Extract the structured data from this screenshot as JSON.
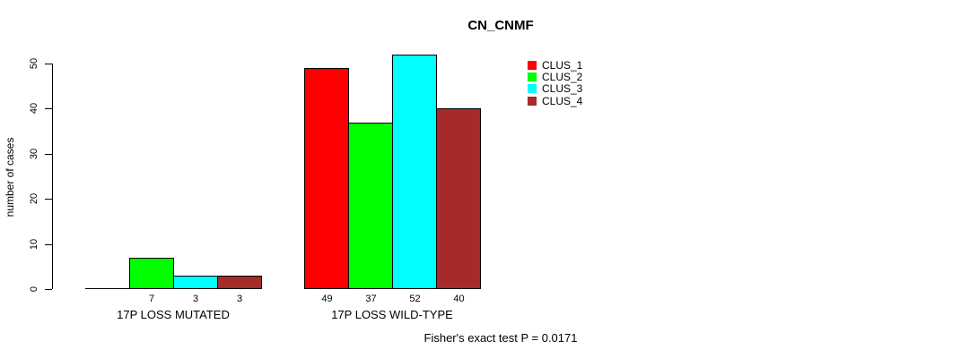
{
  "chart_data": {
    "type": "bar",
    "title": "CN_CNMF",
    "ylabel": "number of cases",
    "ylim": [
      0,
      50
    ],
    "yticks": [
      0,
      10,
      20,
      30,
      40,
      50
    ],
    "categories": [
      "17P LOSS MUTATED",
      "17P LOSS WILD-TYPE"
    ],
    "series": [
      {
        "name": "CLUS_1",
        "color": "#FF0000",
        "values": [
          0,
          49
        ]
      },
      {
        "name": "CLUS_2",
        "color": "#00FF00",
        "values": [
          7,
          37
        ]
      },
      {
        "name": "CLUS_3",
        "color": "#00FFFF",
        "values": [
          3,
          52
        ]
      },
      {
        "name": "CLUS_4",
        "color": "#A52A2A",
        "values": [
          3,
          40
        ]
      }
    ],
    "bar_value_labels_shown": [
      "7",
      "3",
      "3",
      "49",
      "37",
      "52",
      "40"
    ],
    "legend": {
      "position": "top-right",
      "entries": [
        "CLUS_1",
        "CLUS_2",
        "CLUS_3",
        "CLUS_4"
      ]
    },
    "annotation": "Fisher's exact test P = 0.0171",
    "grid": false,
    "legend_box_border": false
  }
}
